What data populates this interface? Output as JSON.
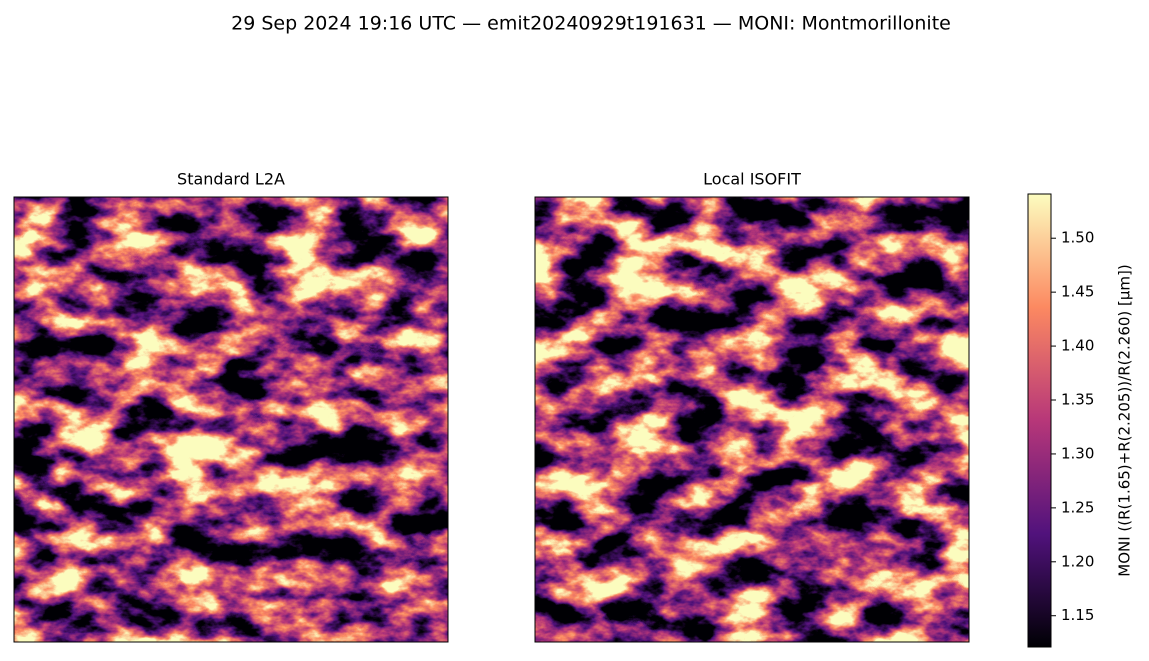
{
  "chart_data": {
    "type": "image",
    "title": "29 Sep 2024 19:16 UTC — emit20240929t191631 — MONI: Montmorillonite",
    "panels": [
      {
        "title": "Standard L2A"
      },
      {
        "title": "Local ISOFIT"
      }
    ],
    "colormap": "magma",
    "colorbar": {
      "label": "MONI  ((R(1.65)+R(2.205))/R(2.260)  [µm])",
      "lim": [
        1.121,
        1.541
      ],
      "ticks": [
        1.15,
        {
          "value": 1.2,
          "label": "1.20"
        },
        1.25,
        {
          "value": 1.3,
          "label": "1.30"
        },
        1.35,
        {
          "value": 1.4,
          "label": "1.40"
        },
        1.45,
        {
          "value": 1.5,
          "label": "1.50"
        }
      ]
    }
  }
}
